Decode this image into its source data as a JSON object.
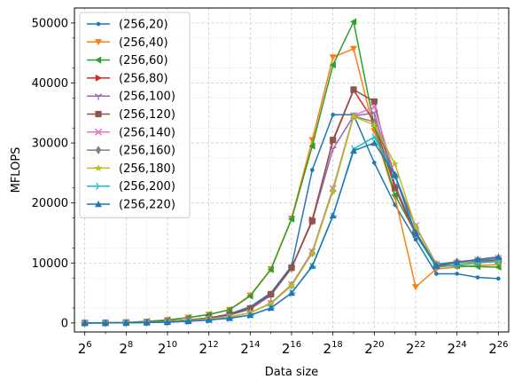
{
  "chart_data": {
    "type": "line",
    "xlabel": "Data size",
    "ylabel": "MFLOPS",
    "x_scale": "log2",
    "x_exponents": [
      6,
      7,
      8,
      9,
      10,
      11,
      12,
      13,
      14,
      15,
      16,
      17,
      18,
      19,
      20,
      21,
      22,
      23,
      24,
      25,
      26
    ],
    "x_tick_exponents": [
      6,
      8,
      10,
      12,
      14,
      16,
      18,
      20,
      22,
      24,
      26
    ],
    "x_tick_labels": [
      {
        "base": "2",
        "exp": "6"
      },
      {
        "base": "2",
        "exp": "8"
      },
      {
        "base": "2",
        "exp": "10"
      },
      {
        "base": "2",
        "exp": "12"
      },
      {
        "base": "2",
        "exp": "14"
      },
      {
        "base": "2",
        "exp": "16"
      },
      {
        "base": "2",
        "exp": "18"
      },
      {
        "base": "2",
        "exp": "20"
      },
      {
        "base": "2",
        "exp": "22"
      },
      {
        "base": "2",
        "exp": "24"
      },
      {
        "base": "2",
        "exp": "26"
      }
    ],
    "y_ticks": [
      0,
      10000,
      20000,
      30000,
      40000,
      50000
    ],
    "y_tick_labels": [
      "0",
      "10000",
      "20000",
      "30000",
      "40000",
      "50000"
    ],
    "ylim": [
      -1500,
      52500
    ],
    "xlim_exponents": [
      5.5,
      26.5
    ],
    "grid": true,
    "minor_grid": true,
    "legend_position": "upper-left",
    "series": [
      {
        "name": "(256,20)",
        "color": "#1f77b4",
        "marker": "dot",
        "values": [
          0,
          20,
          60,
          120,
          250,
          450,
          800,
          1500,
          2700,
          5000,
          9500,
          25500,
          34700,
          34700,
          26700,
          19700,
          13900,
          8200,
          8200,
          7600,
          7400
        ]
      },
      {
        "name": "(256,40)",
        "color": "#ff7f0e",
        "marker": "triangle-down",
        "values": [
          0,
          30,
          100,
          250,
          500,
          900,
          1400,
          2200,
          4600,
          9000,
          17400,
          30500,
          44300,
          45700,
          32000,
          21000,
          6000,
          9000,
          9300,
          9600,
          9700
        ]
      },
      {
        "name": "(256,60)",
        "color": "#2ca02c",
        "marker": "triangle-left",
        "values": [
          0,
          30,
          100,
          250,
          500,
          900,
          1400,
          2200,
          4500,
          8900,
          17300,
          29500,
          43000,
          50200,
          32800,
          21300,
          15000,
          9500,
          9500,
          9400,
          9300
        ]
      },
      {
        "name": "(256,80)",
        "color": "#d62728",
        "marker": "triangle-right",
        "values": [
          0,
          20,
          60,
          130,
          270,
          500,
          850,
          1400,
          2400,
          4700,
          9200,
          17200,
          30300,
          38800,
          33500,
          22500,
          14700,
          9600,
          10000,
          10300,
          10500
        ]
      },
      {
        "name": "(256,100)",
        "color": "#9467bd",
        "marker": "tri-down",
        "values": [
          0,
          20,
          60,
          130,
          260,
          480,
          830,
          1300,
          2300,
          4600,
          9100,
          17000,
          29000,
          34500,
          35000,
          23000,
          14900,
          9700,
          10000,
          10200,
          10400
        ]
      },
      {
        "name": "(256,120)",
        "color": "#8c564b",
        "marker": "square",
        "values": [
          0,
          20,
          60,
          130,
          270,
          500,
          850,
          1400,
          2400,
          4800,
          9200,
          17000,
          30500,
          38900,
          36900,
          22500,
          15200,
          9500,
          9900,
          10200,
          10400
        ]
      },
      {
        "name": "(256,140)",
        "color": "#e377c2",
        "marker": "x",
        "values": [
          0,
          15,
          50,
          100,
          200,
          380,
          650,
          1000,
          1700,
          3300,
          6400,
          11900,
          22400,
          34600,
          36000,
          24500,
          16200,
          9800,
          10000,
          10500,
          10800
        ]
      },
      {
        "name": "(256,160)",
        "color": "#7f7f7f",
        "marker": "diamond",
        "values": [
          0,
          15,
          50,
          100,
          200,
          380,
          650,
          1000,
          1700,
          3300,
          6300,
          11700,
          22100,
          34500,
          33500,
          24600,
          16000,
          9800,
          10200,
          10500,
          10600
        ]
      },
      {
        "name": "(256,180)",
        "color": "#bcbd22",
        "marker": "star",
        "values": [
          0,
          15,
          50,
          100,
          200,
          380,
          650,
          1000,
          1700,
          3200,
          6200,
          11600,
          22000,
          34400,
          33000,
          26500,
          16000,
          9700,
          9900,
          10100,
          10200
        ]
      },
      {
        "name": "(256,200)",
        "color": "#17becf",
        "marker": "tri-right",
        "values": [
          0,
          10,
          40,
          80,
          150,
          300,
          500,
          800,
          1300,
          2500,
          5000,
          9400,
          17800,
          29000,
          31000,
          24500,
          14800,
          9300,
          9600,
          10000,
          10300
        ]
      },
      {
        "name": "(256,220)",
        "color": "#1f77b4",
        "marker": "triangle-up",
        "values": [
          0,
          10,
          40,
          80,
          150,
          300,
          500,
          800,
          1300,
          2500,
          5000,
          9500,
          17900,
          28700,
          30000,
          24700,
          14900,
          9600,
          10100,
          10600,
          11000
        ]
      }
    ]
  }
}
